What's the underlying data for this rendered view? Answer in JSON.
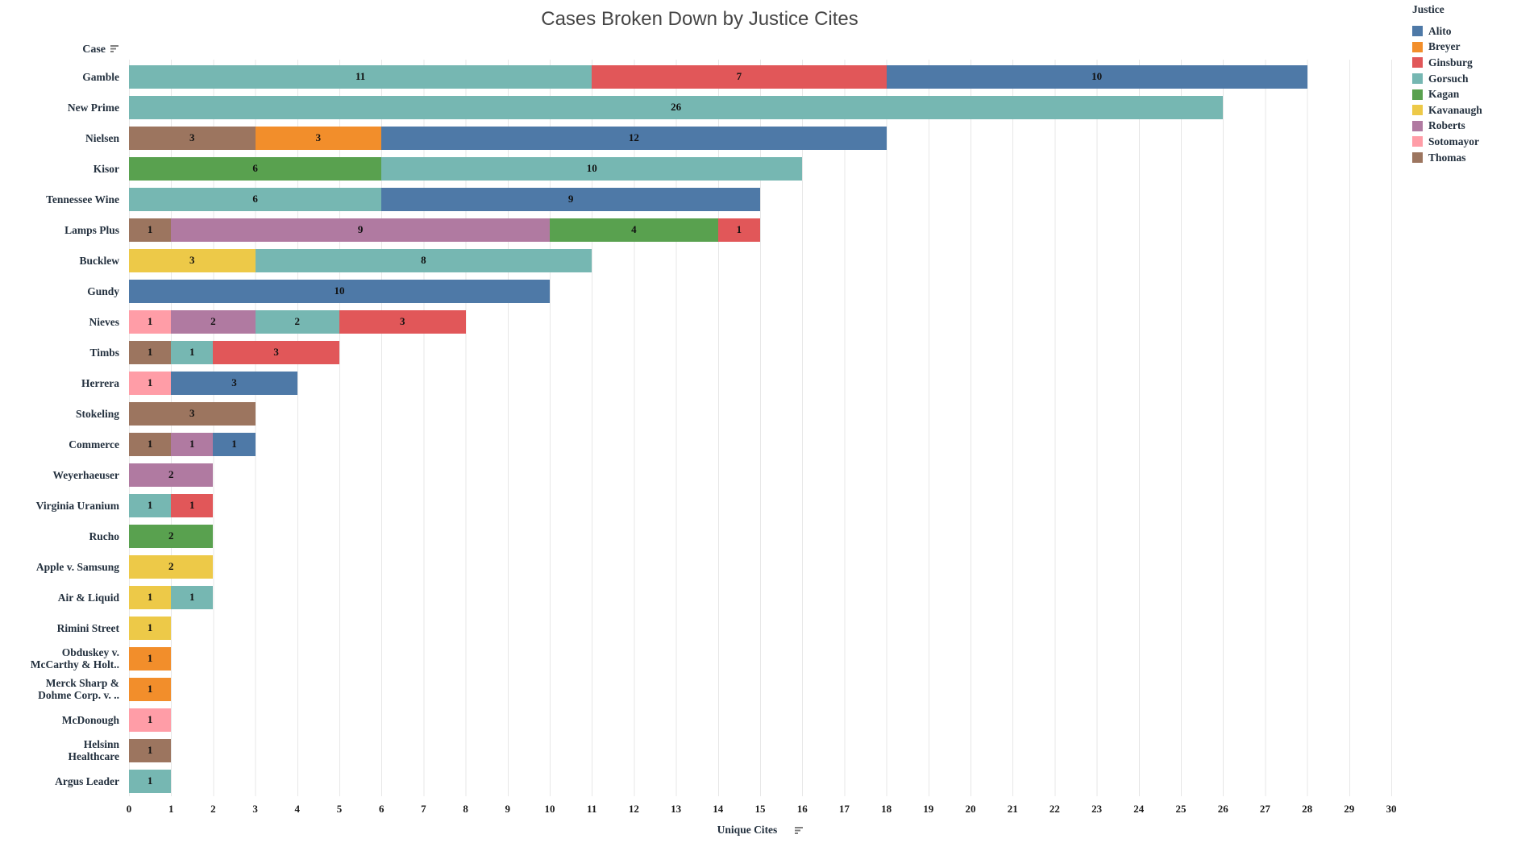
{
  "row_header": {
    "label": "Case"
  },
  "x_axis": {
    "label": "Unique Cites",
    "min": 0,
    "max": 30,
    "tick_step": 1
  },
  "legend": {
    "title": "Justice",
    "position": "top-right",
    "items": [
      {
        "label": "Alito",
        "color": "#4e79a7"
      },
      {
        "label": "Breyer",
        "color": "#f28e2b"
      },
      {
        "label": "Ginsburg",
        "color": "#e15759"
      },
      {
        "label": "Gorsuch",
        "color": "#76b7b2"
      },
      {
        "label": "Kagan",
        "color": "#59a14f"
      },
      {
        "label": "Kavanaugh",
        "color": "#edc948"
      },
      {
        "label": "Roberts",
        "color": "#b07aa1"
      },
      {
        "label": "Sotomayor",
        "color": "#ff9da7"
      },
      {
        "label": "Thomas",
        "color": "#9c755f"
      }
    ]
  },
  "chart_data": {
    "type": "bar",
    "orientation": "horizontal",
    "stacked": true,
    "title": "Cases Broken Down by Justice Cites",
    "xlabel": "Unique Cites",
    "ylabel": "Case",
    "xlim": [
      0,
      30
    ],
    "x_tick_step": 1,
    "grid": true,
    "legend_position": "top-right",
    "rows": [
      {
        "case": "Gamble",
        "case_lines": [
          "Gamble"
        ],
        "total": 28,
        "segments": [
          {
            "justice": "Gorsuch",
            "value": 11
          },
          {
            "justice": "Ginsburg",
            "value": 7
          },
          {
            "justice": "Alito",
            "value": 10
          }
        ]
      },
      {
        "case": "New Prime",
        "case_lines": [
          "New Prime"
        ],
        "total": 26,
        "segments": [
          {
            "justice": "Gorsuch",
            "value": 26
          }
        ]
      },
      {
        "case": "Nielsen",
        "case_lines": [
          "Nielsen"
        ],
        "total": 18,
        "segments": [
          {
            "justice": "Thomas",
            "value": 3
          },
          {
            "justice": "Breyer",
            "value": 3
          },
          {
            "justice": "Alito",
            "value": 12
          }
        ]
      },
      {
        "case": "Kisor",
        "case_lines": [
          "Kisor"
        ],
        "total": 16,
        "segments": [
          {
            "justice": "Kagan",
            "value": 6
          },
          {
            "justice": "Gorsuch",
            "value": 10
          }
        ]
      },
      {
        "case": "Tennessee Wine",
        "case_lines": [
          "Tennessee Wine"
        ],
        "total": 15,
        "segments": [
          {
            "justice": "Gorsuch",
            "value": 6
          },
          {
            "justice": "Alito",
            "value": 9
          }
        ]
      },
      {
        "case": "Lamps Plus",
        "case_lines": [
          "Lamps Plus"
        ],
        "total": 15,
        "segments": [
          {
            "justice": "Thomas",
            "value": 1
          },
          {
            "justice": "Roberts",
            "value": 9
          },
          {
            "justice": "Kagan",
            "value": 4
          },
          {
            "justice": "Ginsburg",
            "value": 1
          }
        ]
      },
      {
        "case": "Bucklew",
        "case_lines": [
          "Bucklew"
        ],
        "total": 11,
        "segments": [
          {
            "justice": "Kavanaugh",
            "value": 3
          },
          {
            "justice": "Gorsuch",
            "value": 8
          }
        ]
      },
      {
        "case": "Gundy",
        "case_lines": [
          "Gundy"
        ],
        "total": 10,
        "segments": [
          {
            "justice": "Alito",
            "value": 10
          }
        ]
      },
      {
        "case": "Nieves",
        "case_lines": [
          "Nieves"
        ],
        "total": 8,
        "segments": [
          {
            "justice": "Sotomayor",
            "value": 1
          },
          {
            "justice": "Roberts",
            "value": 2
          },
          {
            "justice": "Gorsuch",
            "value": 2
          },
          {
            "justice": "Ginsburg",
            "value": 3
          }
        ]
      },
      {
        "case": "Timbs",
        "case_lines": [
          "Timbs"
        ],
        "total": 5,
        "segments": [
          {
            "justice": "Thomas",
            "value": 1
          },
          {
            "justice": "Gorsuch",
            "value": 1
          },
          {
            "justice": "Ginsburg",
            "value": 3
          }
        ]
      },
      {
        "case": "Herrera",
        "case_lines": [
          "Herrera"
        ],
        "total": 4,
        "segments": [
          {
            "justice": "Sotomayor",
            "value": 1
          },
          {
            "justice": "Alito",
            "value": 3
          }
        ]
      },
      {
        "case": "Stokeling",
        "case_lines": [
          "Stokeling"
        ],
        "total": 3,
        "segments": [
          {
            "justice": "Thomas",
            "value": 3
          }
        ]
      },
      {
        "case": "Commerce",
        "case_lines": [
          "Commerce"
        ],
        "total": 3,
        "segments": [
          {
            "justice": "Thomas",
            "value": 1
          },
          {
            "justice": "Roberts",
            "value": 1
          },
          {
            "justice": "Alito",
            "value": 1
          }
        ]
      },
      {
        "case": "Weyerhaeuser",
        "case_lines": [
          "Weyerhaeuser"
        ],
        "total": 2,
        "segments": [
          {
            "justice": "Roberts",
            "value": 2
          }
        ]
      },
      {
        "case": "Virginia Uranium",
        "case_lines": [
          "Virginia Uranium"
        ],
        "total": 2,
        "segments": [
          {
            "justice": "Gorsuch",
            "value": 1
          },
          {
            "justice": "Ginsburg",
            "value": 1
          }
        ]
      },
      {
        "case": "Rucho",
        "case_lines": [
          "Rucho"
        ],
        "total": 2,
        "segments": [
          {
            "justice": "Kagan",
            "value": 2
          }
        ]
      },
      {
        "case": "Apple v. Samsung",
        "case_lines": [
          "Apple v. Samsung"
        ],
        "total": 2,
        "segments": [
          {
            "justice": "Kavanaugh",
            "value": 2
          }
        ]
      },
      {
        "case": "Air & Liquid",
        "case_lines": [
          "Air & Liquid"
        ],
        "total": 2,
        "segments": [
          {
            "justice": "Kavanaugh",
            "value": 1
          },
          {
            "justice": "Gorsuch",
            "value": 1
          }
        ]
      },
      {
        "case": "Rimini Street",
        "case_lines": [
          "Rimini Street"
        ],
        "total": 1,
        "segments": [
          {
            "justice": "Kavanaugh",
            "value": 1
          }
        ]
      },
      {
        "case": "Obduskey v. McCarthy & Holt..",
        "case_lines": [
          "Obduskey v.",
          "McCarthy & Holt.."
        ],
        "total": 1,
        "segments": [
          {
            "justice": "Breyer",
            "value": 1
          }
        ]
      },
      {
        "case": "Merck Sharp & Dohme Corp. v. ..",
        "case_lines": [
          "Merck Sharp &",
          "Dohme Corp. v. .."
        ],
        "total": 1,
        "segments": [
          {
            "justice": "Breyer",
            "value": 1
          }
        ]
      },
      {
        "case": "McDonough",
        "case_lines": [
          "McDonough"
        ],
        "total": 1,
        "segments": [
          {
            "justice": "Sotomayor",
            "value": 1
          }
        ]
      },
      {
        "case": "Helsinn Healthcare",
        "case_lines": [
          "Helsinn",
          "Healthcare"
        ],
        "total": 1,
        "segments": [
          {
            "justice": "Thomas",
            "value": 1
          }
        ]
      },
      {
        "case": "Argus Leader",
        "case_lines": [
          "Argus Leader"
        ],
        "total": 1,
        "segments": [
          {
            "justice": "Gorsuch",
            "value": 1
          }
        ]
      }
    ]
  },
  "style": {
    "grid_color": "#e7e7e7",
    "label_color": "#24313f",
    "title_color": "#464646",
    "value_label_color": "#111111"
  }
}
